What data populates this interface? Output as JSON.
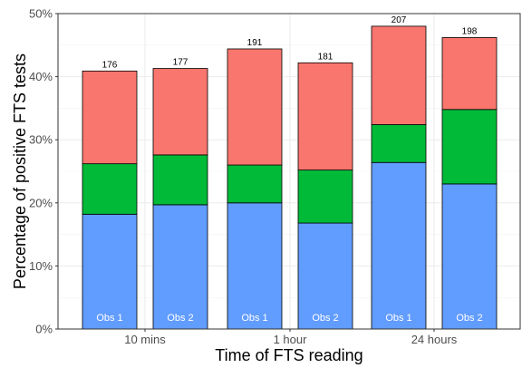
{
  "chart_data": {
    "type": "bar",
    "stacked": true,
    "xlabel": "Time of FTS reading",
    "ylabel": "Percentage of positive FTS tests",
    "ylim": [
      0,
      50
    ],
    "y_ticks": [
      "0%",
      "10%",
      "20%",
      "30%",
      "40%",
      "50%"
    ],
    "grid": true,
    "groups": [
      "10 mins",
      "1 hour",
      "24 hours"
    ],
    "bars": [
      {
        "group": "10 mins",
        "label": "Obs 1",
        "count": "176",
        "segments": [
          18.2,
          8.0,
          14.7
        ]
      },
      {
        "group": "10 mins",
        "label": "Obs 2",
        "count": "177",
        "segments": [
          19.7,
          7.9,
          13.7
        ]
      },
      {
        "group": "1 hour",
        "label": "Obs 1",
        "count": "191",
        "segments": [
          20.0,
          6.0,
          18.4
        ]
      },
      {
        "group": "1 hour",
        "label": "Obs 2",
        "count": "181",
        "segments": [
          16.8,
          8.4,
          17.0
        ]
      },
      {
        "group": "24 hours",
        "label": "Obs 1",
        "count": "207",
        "segments": [
          26.4,
          6.0,
          15.6
        ]
      },
      {
        "group": "24 hours",
        "label": "Obs 2",
        "count": "198",
        "segments": [
          23.0,
          11.8,
          11.4
        ]
      }
    ],
    "segment_colors": [
      "#619CFF",
      "#00BA38",
      "#F8766D"
    ]
  }
}
